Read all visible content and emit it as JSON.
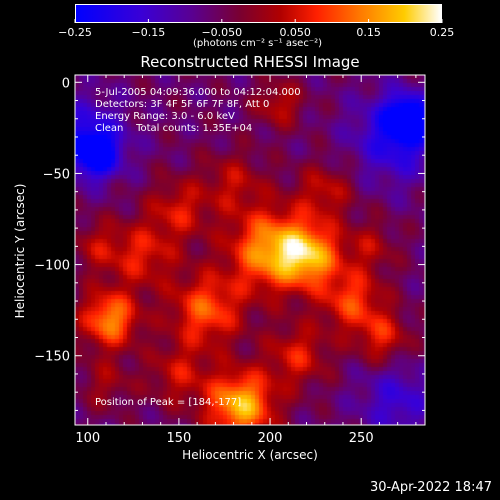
{
  "chart_data": {
    "type": "heatmap",
    "title": "Reconstructed RHESSI Image",
    "xlabel": "Heliocentric X (arcsec)",
    "ylabel": "Heliocentric Y (arcsec)",
    "xlim": [
      93,
      285
    ],
    "ylim": [
      -188,
      4
    ],
    "x_ticks": [
      100,
      150,
      200,
      250
    ],
    "y_ticks": [
      0,
      -50,
      -100,
      -150
    ],
    "colorbar": {
      "min": -0.25,
      "max": 0.25,
      "ticks": [
        -0.25,
        -0.15,
        -0.05,
        0.05,
        0.15,
        0.25
      ],
      "tick_labels": [
        "−0.25",
        "−0.15",
        "−0.050",
        "0.050",
        "0.15",
        "0.25"
      ],
      "label": "(photons cm⁻² s⁻¹ asec⁻²)"
    },
    "annotations": [
      "5-Jul-2005 04:09:36.000 to 04:12:04.000",
      "Detectors: 3F 4F 5F 6F 7F 8F, Att 0",
      "Energy Range: 3.0 - 6.0 keV",
      "Clean    Total counts: 1.35E+04"
    ],
    "peak_text": "Position of Peak = [184,-177]",
    "peak": [
      184,
      -177
    ],
    "blobs": [
      {
        "x": 184,
        "y": -177,
        "r": 13,
        "v": 0.25
      },
      {
        "x": 112,
        "y": -130,
        "r": 11,
        "v": 0.21
      },
      {
        "x": 200,
        "y": -92,
        "r": 16,
        "v": 0.22
      },
      {
        "x": 222,
        "y": -95,
        "r": 12,
        "v": 0.2
      },
      {
        "x": 165,
        "y": -125,
        "r": 14,
        "v": 0.17
      },
      {
        "x": 245,
        "y": -120,
        "r": 12,
        "v": 0.15
      },
      {
        "x": 262,
        "y": -140,
        "r": 10,
        "v": 0.12
      },
      {
        "x": 205,
        "y": -12,
        "r": 9,
        "v": 0.1
      },
      {
        "x": 150,
        "y": -70,
        "r": 12,
        "v": 0.11
      },
      {
        "x": 130,
        "y": -95,
        "r": 13,
        "v": 0.12
      },
      {
        "x": 180,
        "y": -55,
        "r": 12,
        "v": 0.09
      },
      {
        "x": 230,
        "y": -60,
        "r": 11,
        "v": 0.1
      },
      {
        "x": 255,
        "y": -90,
        "r": 10,
        "v": 0.08
      },
      {
        "x": 150,
        "y": -160,
        "r": 12,
        "v": 0.1
      },
      {
        "x": 110,
        "y": -165,
        "r": 10,
        "v": 0.07
      },
      {
        "x": 215,
        "y": -150,
        "r": 12,
        "v": 0.12
      },
      {
        "x": 105,
        "y": -90,
        "r": 10,
        "v": 0.08
      },
      {
        "x": 270,
        "y": -30,
        "r": 16,
        "v": -0.15
      },
      {
        "x": 100,
        "y": -30,
        "r": 14,
        "v": -0.14
      },
      {
        "x": 270,
        "y": -175,
        "r": 14,
        "v": -0.1
      },
      {
        "x": 105,
        "y": -40,
        "r": 8,
        "v": -0.2
      },
      {
        "x": 275,
        "y": -20,
        "r": 8,
        "v": -0.22
      }
    ]
  },
  "timestamp": "30-Apr-2022 18:47"
}
